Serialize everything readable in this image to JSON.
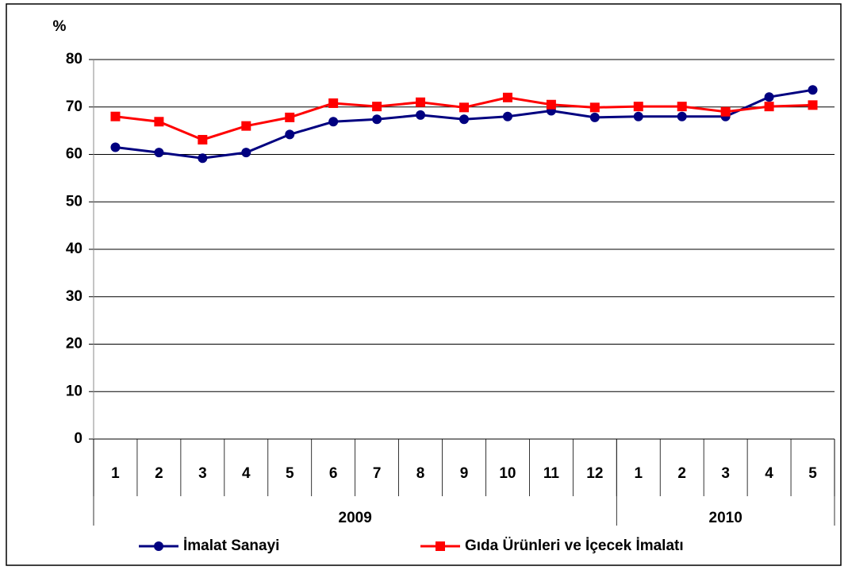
{
  "chart_data": {
    "type": "line",
    "y_label": "%",
    "categories": [
      "1",
      "2",
      "3",
      "4",
      "5",
      "6",
      "7",
      "8",
      "9",
      "10",
      "11",
      "12",
      "1",
      "2",
      "3",
      "4",
      "5"
    ],
    "category_groups": [
      {
        "label": "2009",
        "count": 12
      },
      {
        "label": "2010",
        "count": 5
      }
    ],
    "series": [
      {
        "name": "İmalat Sanayi",
        "color": "#000080",
        "marker": "circle",
        "values": [
          61.5,
          60.4,
          59.2,
          60.4,
          64.2,
          66.9,
          67.4,
          68.3,
          67.4,
          68,
          69.2,
          67.8,
          68,
          68,
          68,
          72.1,
          73.6
        ]
      },
      {
        "name": "Gıda Ürünleri ve İçecek İmalatı",
        "color": "#ff0000",
        "marker": "square",
        "values": [
          68,
          66.9,
          63.1,
          66,
          67.8,
          70.8,
          70.1,
          71,
          69.9,
          72,
          70.5,
          69.9,
          70.1,
          70.1,
          69,
          70.1,
          70.4
        ]
      }
    ],
    "ylim": [
      0,
      80
    ],
    "yticks": [
      0,
      10,
      20,
      30,
      40,
      50,
      60,
      70,
      80
    ],
    "grid": true,
    "legend": "bottom"
  }
}
